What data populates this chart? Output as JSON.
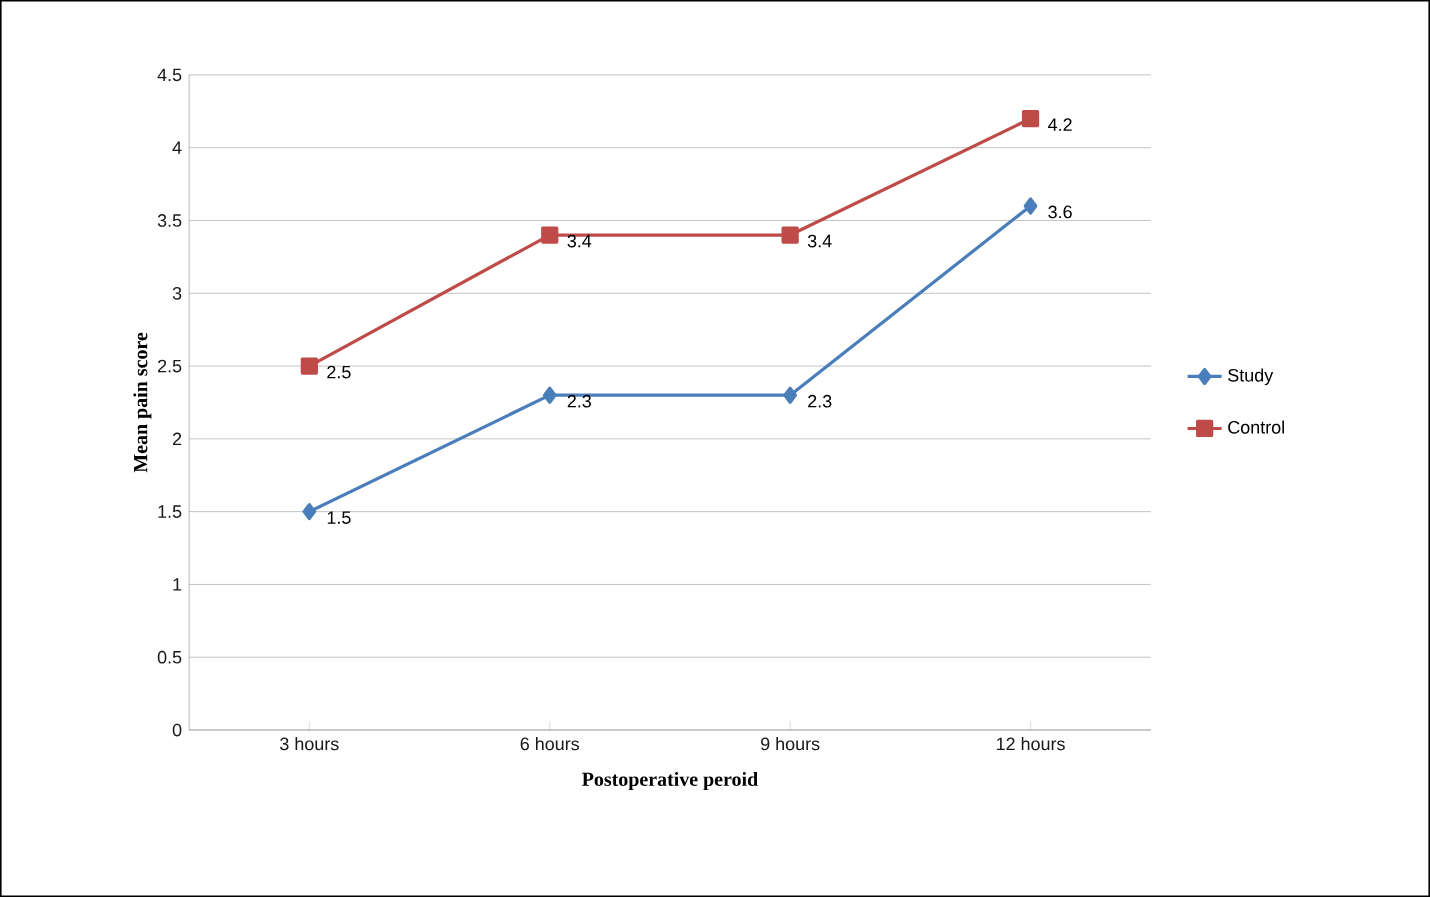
{
  "chart_data": {
    "type": "line",
    "xlabel": "Postoperative peroid",
    "ylabel": "Mean pain score",
    "categories": [
      "3 hours",
      "6 hours",
      "9 hours",
      "12 hours"
    ],
    "series": [
      {
        "name": "Study",
        "color": "#4a7ebb",
        "marker": "diamond",
        "values": [
          1.5,
          2.3,
          2.3,
          3.6
        ]
      },
      {
        "name": "Control",
        "color": "#be4b48",
        "marker": "square",
        "values": [
          2.5,
          3.4,
          3.4,
          4.2
        ]
      }
    ],
    "ylim": [
      0,
      4.5
    ],
    "yticks": [
      0,
      0.5,
      1,
      1.5,
      2,
      2.5,
      3,
      3.5,
      4,
      4.5
    ],
    "grid": "y",
    "legend": "right",
    "data_labels": true
  }
}
